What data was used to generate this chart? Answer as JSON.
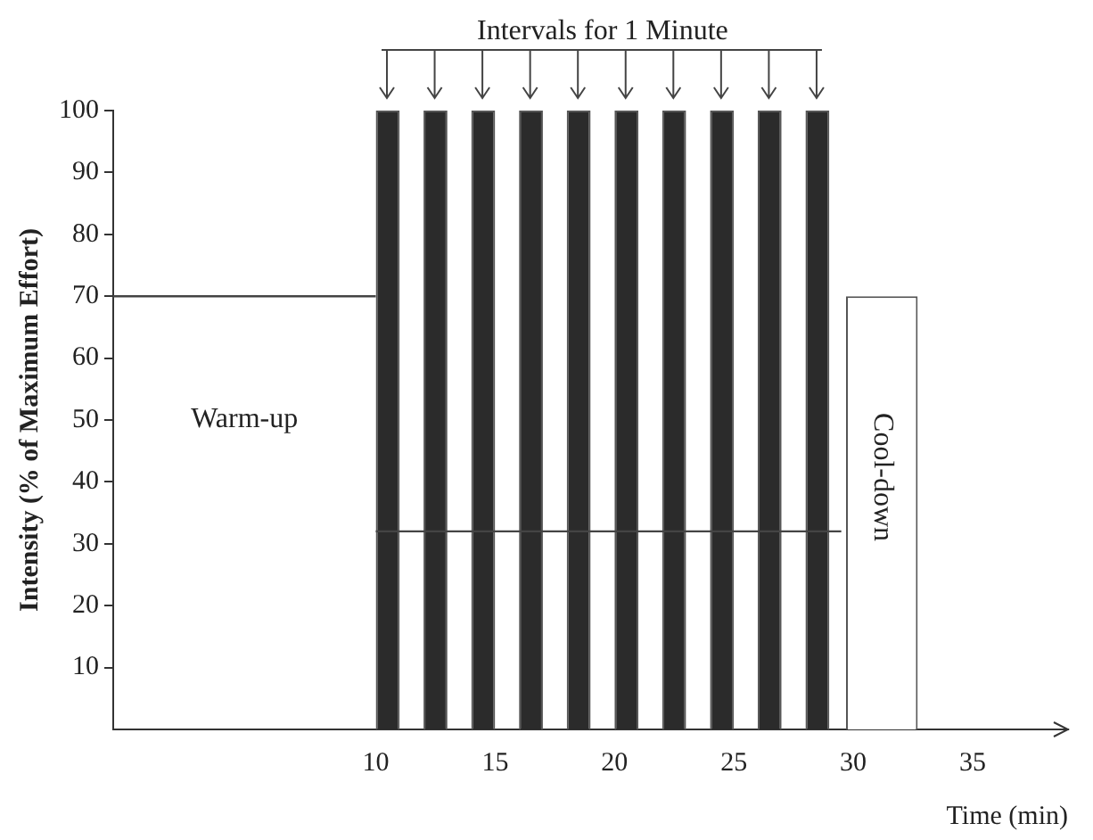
{
  "chart_data": {
    "type": "bar",
    "xlabel": "Time (min)",
    "ylabel": "Intensity (% of Maximum Effort)",
    "xlim": [
      -1,
      39
    ],
    "ylim": [
      0,
      100
    ],
    "xticks": [
      10,
      15,
      20,
      25,
      30,
      35
    ],
    "yticks": [
      10,
      20,
      30,
      40,
      50,
      60,
      70,
      80,
      90,
      100
    ],
    "grid": false,
    "legend": false,
    "marker": "none",
    "line_style": "solid",
    "series": [
      {
        "x": [
          10.5,
          12.5,
          14.5,
          16.5,
          18.5,
          20.5,
          22.5,
          24.5,
          26.5,
          28.5
        ],
        "values": [
          100,
          100,
          100,
          100,
          100,
          100,
          100,
          100,
          100,
          100
        ],
        "color": "#2b2b2b"
      },
      {
        "type": "bar",
        "x": [
          31.2
        ],
        "values": [
          70
        ],
        "color": "#ffffff"
      },
      {
        "type": "line",
        "x": [
          -1,
          10
        ],
        "values": [
          70,
          70
        ],
        "color": "#444444"
      },
      {
        "type": "line",
        "x": [
          10,
          29.5
        ],
        "values": [
          32,
          32
        ],
        "color": "#444444"
      }
    ],
    "annotations": [
      "Intervals for 1 Minute",
      "Warm-up",
      "Cool-down"
    ]
  }
}
